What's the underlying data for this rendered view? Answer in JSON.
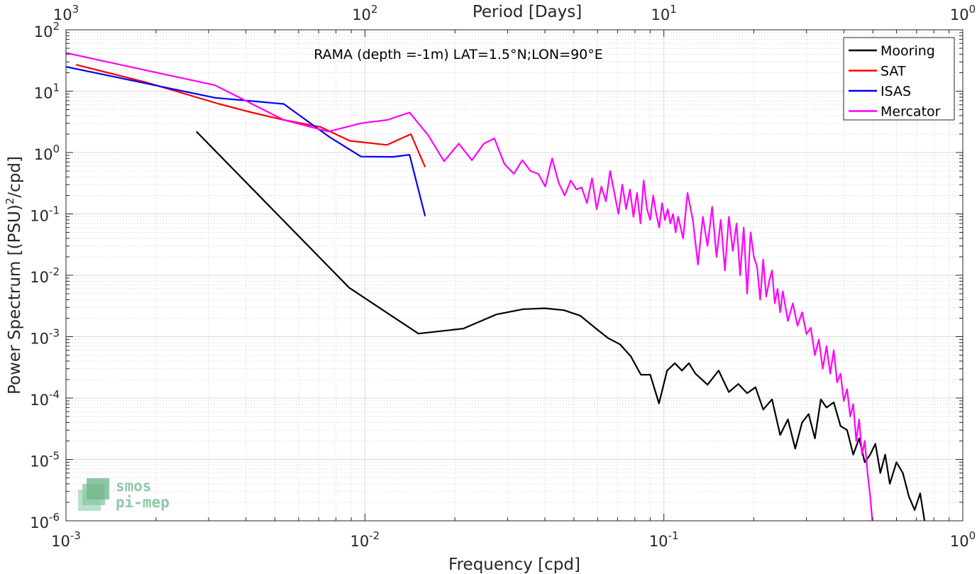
{
  "chart_data": {
    "type": "line",
    "title": "RAMA (depth =-1m) LAT=1.5°N;LON=90°E",
    "xlabel": "Frequency [cpd]",
    "ylabel": "Power Spectrum [(PSU)^2/cpd]",
    "ylabel_parts": [
      "Power Spectrum [(PSU)",
      "2",
      "/cpd]"
    ],
    "x2label": "Period [Days]",
    "xscale": "log",
    "yscale": "log",
    "xlim": [
      0.001,
      1
    ],
    "ylim": [
      1e-06,
      100
    ],
    "grid": true,
    "legend_position": "top-right",
    "xticks": [
      {
        "value": 0.001,
        "base": "10",
        "exp": "-3"
      },
      {
        "value": 0.01,
        "base": "10",
        "exp": "-2"
      },
      {
        "value": 0.1,
        "base": "10",
        "exp": "-1"
      },
      {
        "value": 1,
        "base": "10",
        "exp": "0"
      }
    ],
    "yticks": [
      {
        "value": 100,
        "base": "10",
        "exp": "2"
      },
      {
        "value": 10,
        "base": "10",
        "exp": "1"
      },
      {
        "value": 1,
        "base": "10",
        "exp": "0"
      },
      {
        "value": 0.1,
        "base": "10",
        "exp": "-1"
      },
      {
        "value": 0.01,
        "base": "10",
        "exp": "-2"
      },
      {
        "value": 0.001,
        "base": "10",
        "exp": "-3"
      },
      {
        "value": 0.0001,
        "base": "10",
        "exp": "-4"
      },
      {
        "value": 1e-05,
        "base": "10",
        "exp": "-5"
      },
      {
        "value": 1e-06,
        "base": "10",
        "exp": "-6"
      }
    ],
    "x2ticks": [
      {
        "value": 0.001,
        "base": "10",
        "exp": "3"
      },
      {
        "value": 0.01,
        "base": "10",
        "exp": "2"
      },
      {
        "value": 0.1,
        "base": "10",
        "exp": "1"
      },
      {
        "value": 1,
        "base": "10",
        "exp": "0"
      }
    ],
    "series": [
      {
        "name": "Mooring",
        "color": "#000000",
        "x": [
          0.00273,
          0.00885,
          0.0151,
          0.0213,
          0.0275,
          0.0338,
          0.04,
          0.0463,
          0.0525,
          0.0588,
          0.065,
          0.0713,
          0.0775,
          0.0838,
          0.09,
          0.0963,
          0.1025,
          0.1088,
          0.115,
          0.1213,
          0.1275,
          0.14,
          0.1525,
          0.165,
          0.1775,
          0.19,
          0.2025,
          0.215,
          0.23,
          0.245,
          0.26,
          0.275,
          0.29,
          0.305,
          0.32,
          0.335,
          0.35,
          0.37,
          0.39,
          0.41,
          0.43,
          0.45,
          0.47,
          0.49,
          0.51,
          0.53,
          0.55,
          0.57,
          0.6,
          0.63,
          0.66,
          0.69,
          0.72,
          0.75
        ],
        "y": [
          2.2,
          0.0063,
          0.00112,
          0.00135,
          0.0023,
          0.0028,
          0.0029,
          0.0027,
          0.0022,
          0.0014,
          0.00095,
          0.00075,
          0.00048,
          0.00024,
          0.00024,
          8.2e-05,
          0.00028,
          0.00037,
          0.00028,
          0.00037,
          0.00025,
          0.000165,
          0.00028,
          0.000125,
          0.00017,
          0.00012,
          0.00015,
          6.5e-05,
          9.5e-05,
          2.5e-05,
          4.5e-05,
          1.5e-05,
          4e-05,
          5.5e-05,
          2.2e-05,
          9.5e-05,
          7e-05,
          8.5e-05,
          3.5e-05,
          3e-05,
          1.2e-05,
          2.2e-05,
          9e-06,
          1.2e-05,
          1.8e-05,
          6e-06,
          1.2e-05,
          4e-06,
          9e-06,
          6e-06,
          2.5e-06,
          1.5e-06,
          2.8e-06,
          8e-07
        ]
      },
      {
        "name": "SAT",
        "color": "#ff0000",
        "x": [
          0.00108,
          0.00185,
          0.00325,
          0.00418,
          0.00535,
          0.00712,
          0.0089,
          0.01185,
          0.01425,
          0.0159
        ],
        "y": [
          27,
          14,
          6.2,
          4.5,
          3.4,
          2.6,
          1.55,
          1.33,
          2.0,
          0.58
        ]
      },
      {
        "name": "ISAS",
        "color": "#0000ff",
        "x": [
          0.001,
          0.00315,
          0.00535,
          0.0076,
          0.0097,
          0.0124,
          0.0141,
          0.0159
        ],
        "y": [
          25,
          7.8,
          6.2,
          1.8,
          0.86,
          0.85,
          0.92,
          0.092
        ]
      },
      {
        "name": "Mercator",
        "color": "#ff00ff",
        "x": [
          0.001,
          0.00315,
          0.00535,
          0.00755,
          0.0097,
          0.0119,
          0.0141,
          0.0163,
          0.0184,
          0.0206,
          0.0228,
          0.025,
          0.0271,
          0.0293,
          0.0315,
          0.0336,
          0.0358,
          0.038,
          0.0401,
          0.0423,
          0.0445,
          0.0466,
          0.0488,
          0.051,
          0.0531,
          0.0553,
          0.0575,
          0.0596,
          0.0618,
          0.064,
          0.0661,
          0.0683,
          0.0705,
          0.0726,
          0.0748,
          0.077,
          0.0791,
          0.0813,
          0.0835,
          0.0856,
          0.0878,
          0.09,
          0.0921,
          0.0943,
          0.0965,
          0.0986,
          0.1008,
          0.103,
          0.1051,
          0.1073,
          0.1095,
          0.1116,
          0.1138,
          0.116,
          0.12,
          0.125,
          0.13,
          0.135,
          0.14,
          0.145,
          0.15,
          0.155,
          0.16,
          0.165,
          0.17,
          0.175,
          0.18,
          0.185,
          0.19,
          0.195,
          0.2,
          0.205,
          0.21,
          0.215,
          0.22,
          0.225,
          0.23,
          0.235,
          0.24,
          0.245,
          0.25,
          0.26,
          0.27,
          0.28,
          0.29,
          0.3,
          0.31,
          0.32,
          0.33,
          0.34,
          0.35,
          0.36,
          0.37,
          0.38,
          0.39,
          0.4,
          0.41,
          0.42,
          0.43,
          0.44,
          0.45,
          0.46,
          0.47,
          0.48,
          0.49,
          0.5
        ],
        "y": [
          42,
          12.5,
          3.4,
          2.2,
          3.0,
          3.4,
          4.5,
          1.9,
          0.72,
          1.4,
          0.75,
          1.4,
          1.7,
          0.65,
          0.45,
          0.75,
          0.5,
          0.45,
          0.28,
          0.8,
          0.32,
          0.2,
          0.35,
          0.25,
          0.27,
          0.15,
          0.38,
          0.12,
          0.28,
          0.16,
          0.5,
          0.22,
          0.1,
          0.3,
          0.12,
          0.25,
          0.09,
          0.22,
          0.07,
          0.35,
          0.12,
          0.08,
          0.2,
          0.1,
          0.06,
          0.15,
          0.08,
          0.12,
          0.07,
          0.1,
          0.05,
          0.09,
          0.06,
          0.04,
          0.22,
          0.08,
          0.015,
          0.09,
          0.03,
          0.13,
          0.02,
          0.08,
          0.012,
          0.09,
          0.025,
          0.07,
          0.01,
          0.06,
          0.005,
          0.05,
          0.02,
          0.014,
          0.004,
          0.018,
          0.0045,
          0.008,
          0.012,
          0.0035,
          0.006,
          0.0025,
          0.0055,
          0.0018,
          0.0035,
          0.0015,
          0.0025,
          0.0011,
          0.0014,
          0.0005,
          0.0009,
          0.0003,
          0.0007,
          0.00025,
          0.0006,
          0.00018,
          0.00025,
          9e-05,
          0.00014,
          5e-05,
          8e-05,
          2e-05,
          4.5e-05,
          1.2e-05,
          2e-05,
          6e-06,
          2.5e-06,
          8e-07
        ]
      }
    ]
  },
  "watermark": {
    "line1": "smos",
    "line2": "pi-mep"
  }
}
